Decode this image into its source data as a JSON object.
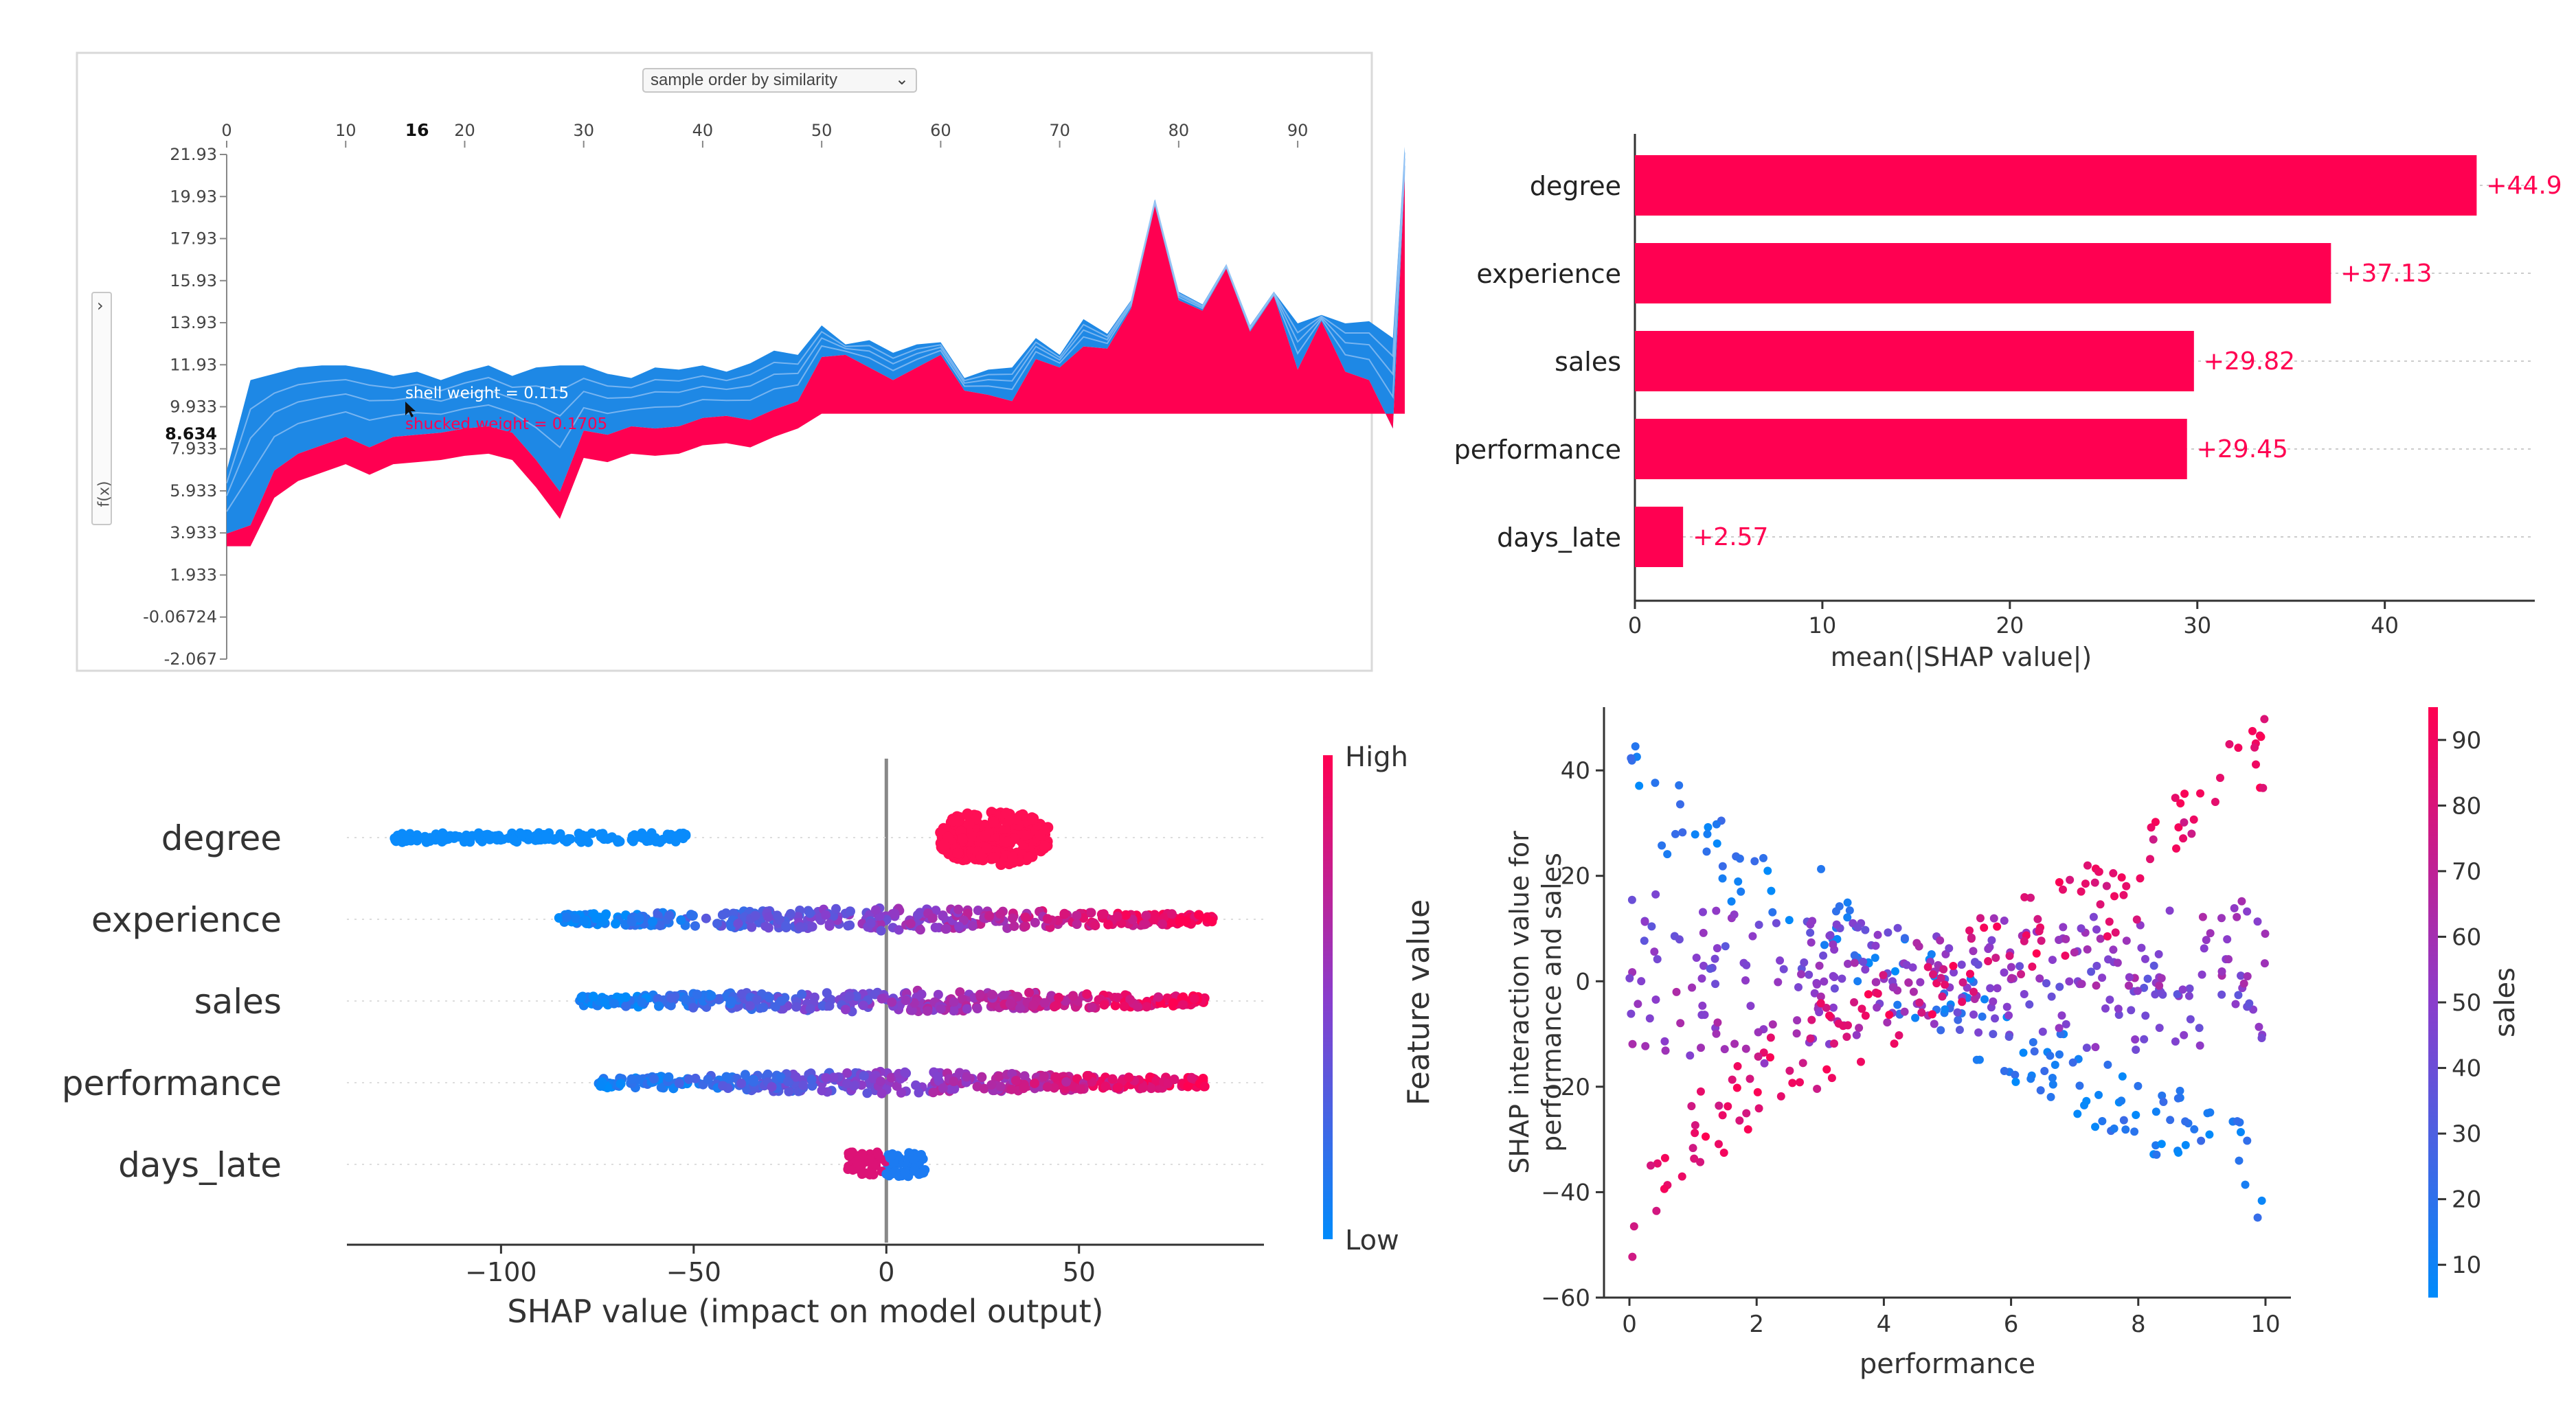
{
  "panel1": {
    "dropdown": {
      "selected": "sample order by similarity"
    },
    "sidebar_toggle": {
      "fx_label": "f(x)"
    },
    "xticks": [
      "0",
      "10",
      "20",
      "30",
      "40",
      "50",
      "60",
      "70",
      "80",
      "90"
    ],
    "highlight_x": "16",
    "yticks": [
      "21.93",
      "19.93",
      "17.93",
      "15.93",
      "13.93",
      "11.93",
      "9.933",
      "7.933",
      "5.933",
      "3.933",
      "1.933",
      "-0.06724",
      "-2.067"
    ],
    "highlight_y": "8.634",
    "tooltip_positive": "shell weight = 0.115",
    "tooltip_negative": "shucked weight = 0.1705",
    "colors": {
      "positive": "#ff0051",
      "negative": "#1e88e5",
      "frame": "#c8c8c8"
    }
  },
  "chart_data": [
    {
      "type": "area",
      "title": "",
      "x_range": [
        0,
        99
      ],
      "ylim": [
        -2.067,
        21.93
      ],
      "x": [
        0,
        2,
        4,
        6,
        8,
        10,
        12,
        14,
        16,
        18,
        20,
        22,
        24,
        26,
        28,
        30,
        32,
        34,
        36,
        38,
        40,
        42,
        44,
        46,
        48,
        50,
        52,
        54,
        56,
        58,
        60,
        62,
        64,
        66,
        68,
        70,
        72,
        74,
        76,
        78,
        80,
        82,
        84,
        86,
        88,
        90,
        92,
        94,
        96,
        98,
        99
      ],
      "series": [
        {
          "name": "",
          "values": [
            3.9,
            4.3,
            6.9,
            7.7,
            8.1,
            8.5,
            8.0,
            8.5,
            8.6,
            8.7,
            8.9,
            9.0,
            8.7,
            7.4,
            5.9,
            8.8,
            8.6,
            9.0,
            8.9,
            9.0,
            9.4,
            9.5,
            9.3,
            9.8,
            10.2,
            12.3,
            12.4,
            11.8,
            11.2,
            11.8,
            12.4,
            10.7,
            10.5,
            10.2,
            12.2,
            11.8,
            12.8,
            12.7,
            14.6,
            19.5,
            15.0,
            14.5,
            16.5,
            13.5,
            15.2,
            11.7,
            14.0,
            11.6,
            11.2,
            8.9,
            20.9
          ]
        },
        {
          "name": "",
          "values": [
            6.9,
            11.2,
            11.5,
            11.8,
            11.9,
            11.9,
            11.7,
            11.4,
            11.6,
            11.2,
            11.6,
            11.9,
            11.4,
            11.8,
            11.9,
            11.9,
            11.5,
            11.3,
            11.8,
            11.7,
            11.9,
            11.6,
            12.0,
            12.6,
            12.4,
            13.8,
            12.9,
            13.1,
            12.5,
            12.9,
            13.0,
            11.3,
            11.7,
            11.8,
            13.2,
            12.4,
            14.1,
            13.4,
            15.0,
            19.8,
            15.4,
            14.8,
            16.7,
            13.8,
            15.4,
            13.9,
            14.3,
            13.9,
            14.0,
            13.2,
            22.3
          ]
        }
      ],
      "series_note": ""
    },
    {
      "type": "bar",
      "orientation": "horizontal",
      "categories": [
        "degree",
        "experience",
        "sales",
        "performance",
        "days_late"
      ],
      "values": [
        44.9,
        37.13,
        29.82,
        29.45,
        2.57
      ],
      "labels": [
        "+44.9",
        "+37.13",
        "+29.82",
        "+29.45",
        "+2.57"
      ],
      "xlabel": "mean(|SHAP value|)",
      "xticks": [
        "0",
        "10",
        "20",
        "30",
        "40"
      ],
      "xlim": [
        0,
        48
      ],
      "color": "#ff0051"
    },
    {
      "type": "scatter",
      "subtype": "beeswarm",
      "categories": [
        "degree",
        "experience",
        "sales",
        "performance",
        "days_late"
      ],
      "ranges": [
        [
          -130,
          -50
        ],
        [
          -85,
          85
        ],
        [
          -80,
          83
        ],
        [
          -75,
          83
        ],
        [
          -10,
          10
        ]
      ],
      "xlabel": "SHAP value (impact on model output)",
      "xticks": [
        "−100",
        "−50",
        "0",
        "50"
      ],
      "xlim": [
        -140,
        98
      ],
      "colorbar": {
        "label": "Feature value",
        "high": "High",
        "low": "Low",
        "high_color": "#ff0051",
        "low_color": "#008bfb"
      }
    },
    {
      "type": "scatter",
      "xlabel": "performance",
      "ylabel_line1": "SHAP interaction value for",
      "ylabel_line2": "performance and sales",
      "xlim": [
        -0.4,
        10.4
      ],
      "ylim": [
        -60,
        52
      ],
      "xticks": [
        "0",
        "2",
        "4",
        "6",
        "8",
        "10"
      ],
      "yticks": [
        "40",
        "20",
        "0",
        "−20",
        "−40",
        "−60"
      ],
      "colorbar": {
        "label": "sales",
        "ticks": [
          "90",
          "80",
          "70",
          "60",
          "50",
          "40",
          "30",
          "20",
          "10"
        ],
        "range": [
          5,
          95
        ]
      },
      "groups": [
        {
          "sales": 15,
          "points": [
            [
              0,
              38
            ],
            [
              1,
              27
            ],
            [
              2,
              18
            ],
            [
              3,
              15
            ],
            [
              4,
              3
            ],
            [
              5,
              -3
            ],
            [
              6,
              -12
            ],
            [
              7,
              -18
            ],
            [
              8,
              -25
            ],
            [
              9,
              -30
            ],
            [
              10,
              -38
            ]
          ]
        },
        {
          "sales": 45,
          "points": [
            [
              0,
              10
            ],
            [
              2,
              5
            ],
            [
              4,
              3
            ],
            [
              6,
              -5
            ],
            [
              8,
              -5
            ],
            [
              10,
              -5
            ]
          ]
        },
        {
          "sales": 55,
          "points": [
            [
              0,
              -5
            ],
            [
              2,
              -8
            ],
            [
              4,
              -2
            ],
            [
              6,
              5
            ],
            [
              8,
              5
            ],
            [
              10,
              8
            ]
          ]
        },
        {
          "sales": 85,
          "points": [
            [
              0,
              -45
            ],
            [
              1,
              -30
            ],
            [
              2,
              -20
            ],
            [
              3,
              -12
            ],
            [
              4,
              -5
            ],
            [
              5,
              2
            ],
            [
              6,
              8
            ],
            [
              7,
              13
            ],
            [
              8,
              18
            ],
            [
              9,
              35
            ],
            [
              10,
              42
            ]
          ]
        }
      ]
    }
  ]
}
